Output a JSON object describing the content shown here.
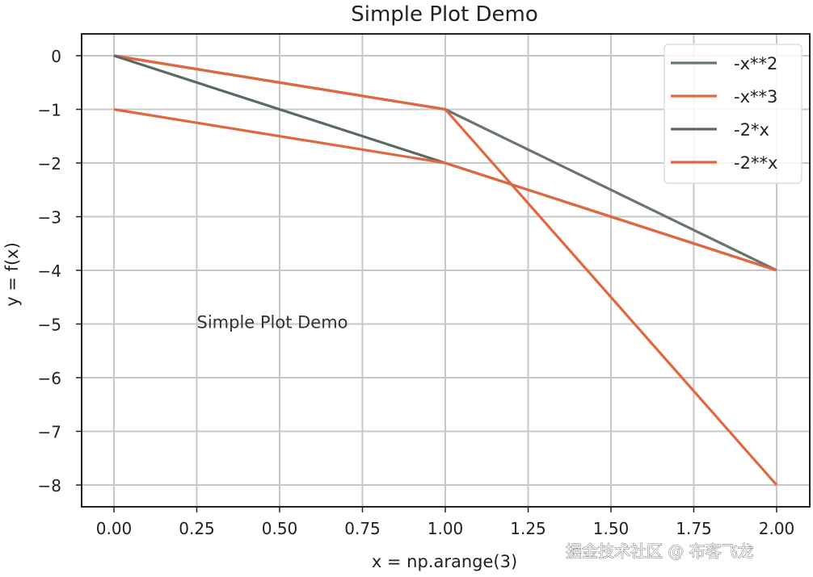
{
  "chart_data": {
    "type": "line",
    "title": "Simple Plot Demo",
    "xlabel": "x = np.arange(3)",
    "ylabel": "y = f(x)",
    "x": [
      0,
      1,
      2
    ],
    "series": [
      {
        "name": "-x**2",
        "values": [
          0,
          -1,
          -4
        ],
        "color": "#69756f"
      },
      {
        "name": "-x**3",
        "values": [
          0,
          -1,
          -8
        ],
        "color": "#e2673e"
      },
      {
        "name": "-2*x",
        "values": [
          0,
          -2,
          -4
        ],
        "color": "#5a6a63"
      },
      {
        "name": "-2**x",
        "values": [
          -1,
          -2,
          -4
        ],
        "color": "#e2673e"
      }
    ],
    "xlim": [
      -0.05,
      2.05
    ],
    "ylim": [
      -8.4,
      0.4
    ],
    "xticks": [
      0.0,
      0.25,
      0.5,
      0.75,
      1.0,
      1.25,
      1.5,
      1.75,
      2.0
    ],
    "xtick_labels": [
      "0.00",
      "0.25",
      "0.50",
      "0.75",
      "1.00",
      "1.25",
      "1.50",
      "1.75",
      "2.00"
    ],
    "yticks": [
      0,
      -1,
      -2,
      -3,
      -4,
      -5,
      -6,
      -7,
      -8
    ],
    "ytick_labels": [
      "0",
      "−1",
      "−2",
      "−3",
      "−4",
      "−5",
      "−6",
      "−7",
      "−8"
    ],
    "grid": true,
    "legend_position": "upper right",
    "annotations": [
      {
        "text": "Simple Plot Demo",
        "x": 0.25,
        "y": -5
      }
    ]
  },
  "watermark": "掘金技术社区 @ 布客飞龙"
}
